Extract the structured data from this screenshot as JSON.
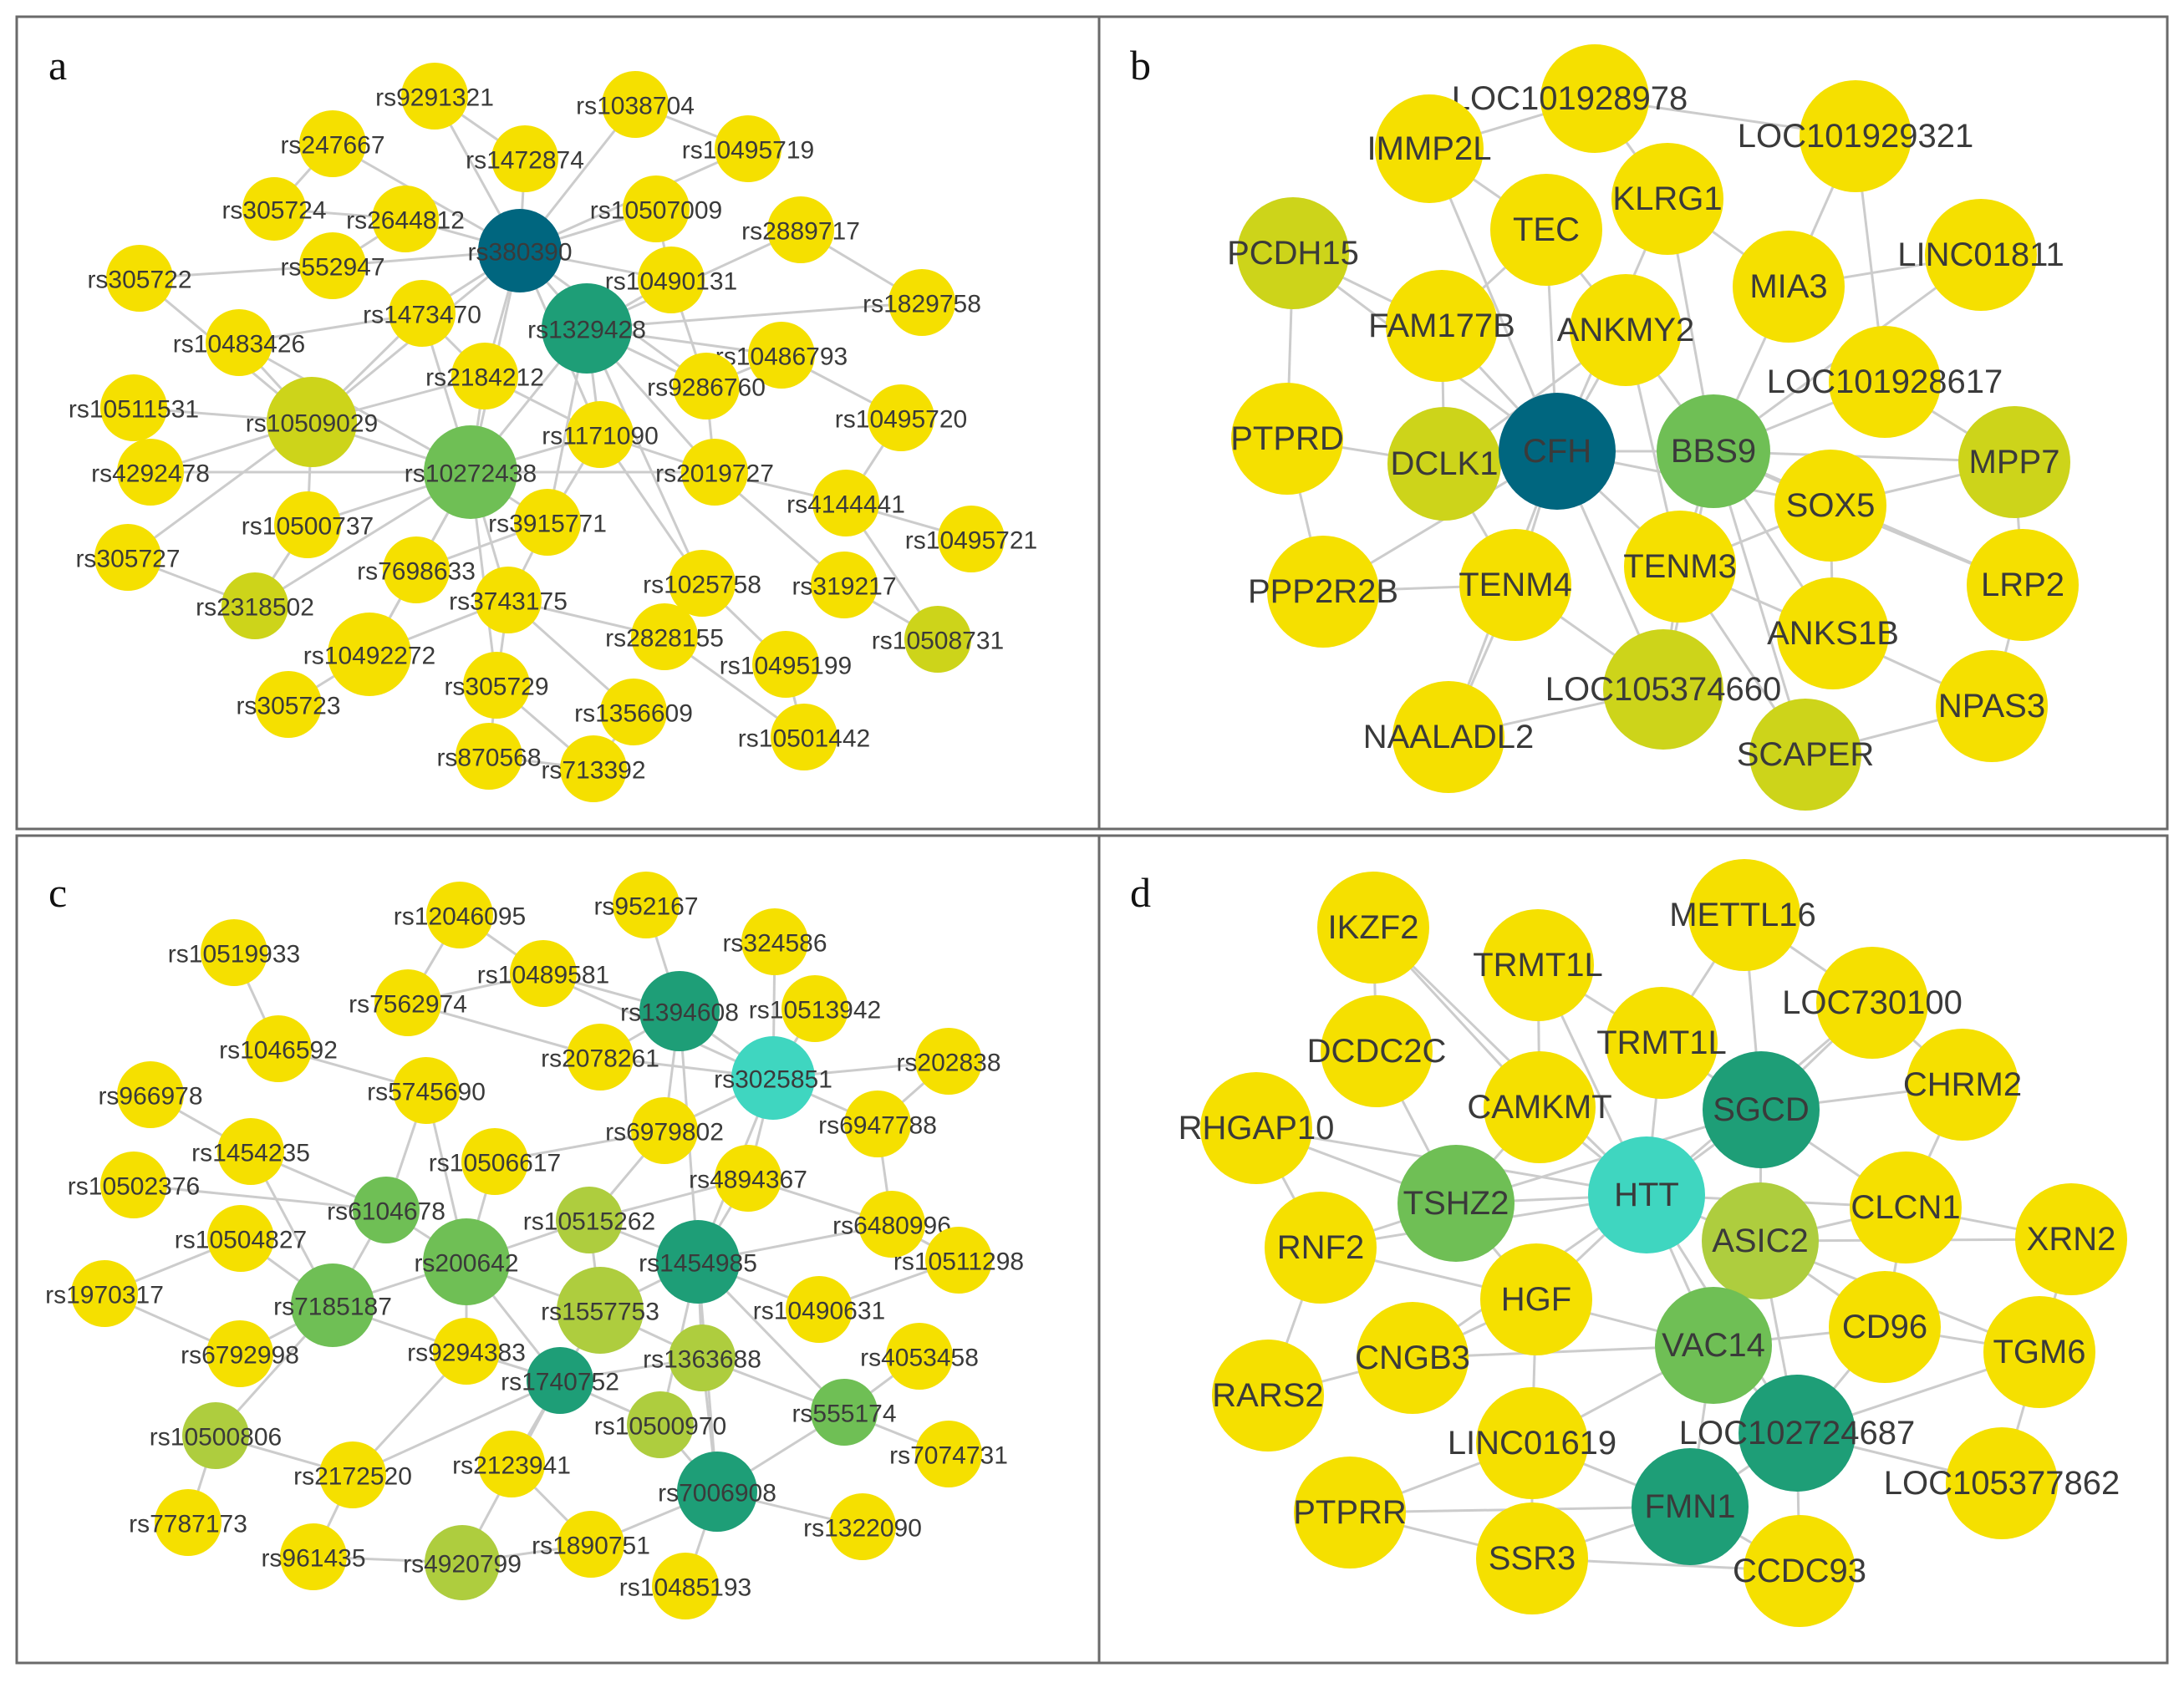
{
  "colors": {
    "yellow": "#f5e000",
    "olive": "#cdd41a",
    "yellowgreen": "#aecd3e",
    "green": "#6fbf55",
    "seagreen": "#1e9e77",
    "teal": "#00667f",
    "turquoise": "#3fd6c0",
    "edge": "#cccccc",
    "label": "#3a3a3a"
  },
  "panels": [
    {
      "label": "a",
      "nodes": [
        {
          "name": "rs9291321",
          "color": "yellow"
        },
        {
          "name": "rs1038704",
          "color": "yellow"
        },
        {
          "name": "rs247667",
          "color": "yellow"
        },
        {
          "name": "rs1472874",
          "color": "yellow"
        },
        {
          "name": "rs10495719",
          "color": "yellow"
        },
        {
          "name": "rs305724",
          "color": "yellow"
        },
        {
          "name": "rs2644812",
          "color": "yellow"
        },
        {
          "name": "rs10507009",
          "color": "yellow"
        },
        {
          "name": "rs2889717",
          "color": "yellow"
        },
        {
          "name": "rs380390",
          "color": "teal"
        },
        {
          "name": "rs552947",
          "color": "yellow"
        },
        {
          "name": "rs305722",
          "color": "yellow"
        },
        {
          "name": "rs10490131",
          "color": "yellow"
        },
        {
          "name": "rs1829758",
          "color": "yellow"
        },
        {
          "name": "rs1473470",
          "color": "yellow"
        },
        {
          "name": "rs1329428",
          "color": "seagreen"
        },
        {
          "name": "rs10483426",
          "color": "yellow"
        },
        {
          "name": "rs10486793",
          "color": "yellow"
        },
        {
          "name": "rs2184212",
          "color": "yellow"
        },
        {
          "name": "rs9286760",
          "color": "yellow"
        },
        {
          "name": "rs10511531",
          "color": "yellow"
        },
        {
          "name": "rs10509029",
          "color": "olive"
        },
        {
          "name": "rs1171090",
          "color": "yellow"
        },
        {
          "name": "rs10495720",
          "color": "yellow"
        },
        {
          "name": "rs4292478",
          "color": "yellow"
        },
        {
          "name": "rs10272438",
          "color": "green"
        },
        {
          "name": "rs2019727",
          "color": "yellow"
        },
        {
          "name": "rs4144441",
          "color": "yellow"
        },
        {
          "name": "rs10500737",
          "color": "yellow"
        },
        {
          "name": "rs3915771",
          "color": "yellow"
        },
        {
          "name": "rs10495721",
          "color": "yellow"
        },
        {
          "name": "rs305727",
          "color": "yellow"
        },
        {
          "name": "rs7698633",
          "color": "yellow"
        },
        {
          "name": "rs1025758",
          "color": "yellow"
        },
        {
          "name": "rs319217",
          "color": "yellow"
        },
        {
          "name": "rs2318502",
          "color": "olive"
        },
        {
          "name": "rs3743175",
          "color": "yellow"
        },
        {
          "name": "rs10492272",
          "color": "yellow"
        },
        {
          "name": "rs2828155",
          "color": "yellow"
        },
        {
          "name": "rs10508731",
          "color": "olive"
        },
        {
          "name": "rs10495199",
          "color": "yellow"
        },
        {
          "name": "rs305729",
          "color": "yellow"
        },
        {
          "name": "rs305723",
          "color": "yellow"
        },
        {
          "name": "rs1356609",
          "color": "yellow"
        },
        {
          "name": "rs10501442",
          "color": "yellow"
        },
        {
          "name": "rs870568",
          "color": "yellow"
        },
        {
          "name": "rs713392",
          "color": "yellow"
        }
      ]
    },
    {
      "label": "b",
      "nodes": [
        {
          "name": "LOC101928978",
          "color": "yellow"
        },
        {
          "name": "IMMP2L",
          "color": "yellow"
        },
        {
          "name": "LOC101929321",
          "color": "yellow"
        },
        {
          "name": "KLRG1",
          "color": "yellow"
        },
        {
          "name": "TEC",
          "color": "yellow"
        },
        {
          "name": "PCDH15",
          "color": "olive"
        },
        {
          "name": "LINC01811",
          "color": "yellow"
        },
        {
          "name": "MIA3",
          "color": "yellow"
        },
        {
          "name": "FAM177B",
          "color": "yellow"
        },
        {
          "name": "ANKMY2",
          "color": "yellow"
        },
        {
          "name": "LOC101928617",
          "color": "yellow"
        },
        {
          "name": "PTPRD",
          "color": "yellow"
        },
        {
          "name": "DCLK1",
          "color": "olive"
        },
        {
          "name": "CFH",
          "color": "teal"
        },
        {
          "name": "BBS9",
          "color": "green"
        },
        {
          "name": "MPP7",
          "color": "olive"
        },
        {
          "name": "SOX5",
          "color": "yellow"
        },
        {
          "name": "PPP2R2B",
          "color": "yellow"
        },
        {
          "name": "TENM4",
          "color": "yellow"
        },
        {
          "name": "TENM3",
          "color": "yellow"
        },
        {
          "name": "LRP2",
          "color": "yellow"
        },
        {
          "name": "ANKS1B",
          "color": "yellow"
        },
        {
          "name": "LOC105374660",
          "color": "olive"
        },
        {
          "name": "NPAS3",
          "color": "yellow"
        },
        {
          "name": "NAALADL2",
          "color": "yellow"
        },
        {
          "name": "SCAPER",
          "color": "olive"
        }
      ]
    },
    {
      "label": "c",
      "nodes": [
        {
          "name": "rs12046095",
          "color": "yellow"
        },
        {
          "name": "rs952167",
          "color": "yellow"
        },
        {
          "name": "rs10519933",
          "color": "yellow"
        },
        {
          "name": "rs324586",
          "color": "yellow"
        },
        {
          "name": "rs10489581",
          "color": "yellow"
        },
        {
          "name": "rs7562974",
          "color": "yellow"
        },
        {
          "name": "rs1394608",
          "color": "seagreen"
        },
        {
          "name": "rs10513942",
          "color": "yellow"
        },
        {
          "name": "rs1046592",
          "color": "yellow"
        },
        {
          "name": "rs2078261",
          "color": "yellow"
        },
        {
          "name": "rs202838",
          "color": "yellow"
        },
        {
          "name": "rs3025851",
          "color": "turquoise"
        },
        {
          "name": "rs966978",
          "color": "yellow"
        },
        {
          "name": "rs5745690",
          "color": "yellow"
        },
        {
          "name": "rs6947788",
          "color": "yellow"
        },
        {
          "name": "rs6979802",
          "color": "yellow"
        },
        {
          "name": "rs1454235",
          "color": "yellow"
        },
        {
          "name": "rs10506617",
          "color": "yellow"
        },
        {
          "name": "rs4894367",
          "color": "yellow"
        },
        {
          "name": "rs10502376",
          "color": "yellow"
        },
        {
          "name": "rs6104678",
          "color": "green"
        },
        {
          "name": "rs6480996",
          "color": "yellow"
        },
        {
          "name": "rs10515262",
          "color": "yellowgreen"
        },
        {
          "name": "rs10504827",
          "color": "yellow"
        },
        {
          "name": "rs10511298",
          "color": "yellow"
        },
        {
          "name": "rs200642",
          "color": "green"
        },
        {
          "name": "rs1454985",
          "color": "seagreen"
        },
        {
          "name": "rs1970317",
          "color": "yellow"
        },
        {
          "name": "rs7185187",
          "color": "green"
        },
        {
          "name": "rs1557753",
          "color": "yellowgreen"
        },
        {
          "name": "rs10490631",
          "color": "yellow"
        },
        {
          "name": "rs6792998",
          "color": "yellow"
        },
        {
          "name": "rs9294383",
          "color": "yellow"
        },
        {
          "name": "rs1363688",
          "color": "yellowgreen"
        },
        {
          "name": "rs4053458",
          "color": "yellow"
        },
        {
          "name": "rs1740752",
          "color": "seagreen"
        },
        {
          "name": "rs10500806",
          "color": "yellowgreen"
        },
        {
          "name": "rs10500970",
          "color": "yellowgreen"
        },
        {
          "name": "rs555174",
          "color": "green"
        },
        {
          "name": "rs7074731",
          "color": "yellow"
        },
        {
          "name": "rs2172520",
          "color": "yellow"
        },
        {
          "name": "rs2123941",
          "color": "yellow"
        },
        {
          "name": "rs7006908",
          "color": "seagreen"
        },
        {
          "name": "rs7787173",
          "color": "yellow"
        },
        {
          "name": "rs1322090",
          "color": "yellow"
        },
        {
          "name": "rs961435",
          "color": "yellow"
        },
        {
          "name": "rs4920799",
          "color": "yellowgreen"
        },
        {
          "name": "rs1890751",
          "color": "yellow"
        },
        {
          "name": "rs10485193",
          "color": "yellow"
        }
      ]
    },
    {
      "label": "d",
      "nodes": [
        {
          "name": "METTL16",
          "color": "yellow"
        },
        {
          "name": "IKZF2",
          "color": "yellow"
        },
        {
          "name": "TRMT1L",
          "color": "yellow"
        },
        {
          "name": "LOC730100",
          "color": "yellow"
        },
        {
          "name": "TRMT1L",
          "color": "yellow"
        },
        {
          "name": "DCDC2C",
          "color": "yellow"
        },
        {
          "name": "CHRM2",
          "color": "yellow"
        },
        {
          "name": "CAMKMT",
          "color": "yellow"
        },
        {
          "name": "SGCD",
          "color": "seagreen"
        },
        {
          "name": "RHGAP10",
          "color": "yellow"
        },
        {
          "name": "TSHZ2",
          "color": "green"
        },
        {
          "name": "HTT",
          "color": "turquoise"
        },
        {
          "name": "CLCN1",
          "color": "yellow"
        },
        {
          "name": "XRN2",
          "color": "yellow"
        },
        {
          "name": "ASIC2",
          "color": "yellowgreen"
        },
        {
          "name": "RNF2",
          "color": "yellow"
        },
        {
          "name": "HGF",
          "color": "yellow"
        },
        {
          "name": "CD96",
          "color": "yellow"
        },
        {
          "name": "VAC14",
          "color": "green"
        },
        {
          "name": "TGM6",
          "color": "yellow"
        },
        {
          "name": "CNGB3",
          "color": "yellow"
        },
        {
          "name": "RARS2",
          "color": "yellow"
        },
        {
          "name": "LOC102724687",
          "color": "seagreen"
        },
        {
          "name": "LINC01619",
          "color": "yellow"
        },
        {
          "name": "LOC105377862",
          "color": "yellow"
        },
        {
          "name": "PTPRR",
          "color": "yellow"
        },
        {
          "name": "FMN1",
          "color": "seagreen"
        },
        {
          "name": "SSR3",
          "color": "yellow"
        },
        {
          "name": "CCDC93",
          "color": "yellow"
        }
      ]
    }
  ]
}
